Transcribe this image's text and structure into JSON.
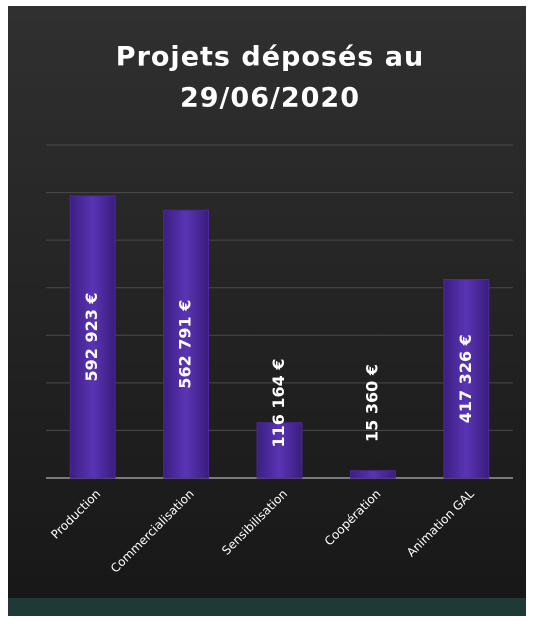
{
  "chart_data": {
    "type": "bar",
    "title": [
      "Projets déposés au",
      "29/06/2020"
    ],
    "categories": [
      "Production",
      "Commercialisation",
      "Sensibilisation",
      "Coopération",
      "Animation GAL"
    ],
    "values": [
      592923,
      562791,
      116164,
      15360,
      417326
    ],
    "value_labels": [
      "592 923 €",
      "562 791 €",
      "116 164 €",
      "15 360 €",
      "417 326 €"
    ],
    "color": "#4b2a9a",
    "ylim": [
      0,
      700000
    ],
    "yticks": [
      0,
      100000,
      200000,
      300000,
      400000,
      500000,
      600000,
      700000
    ],
    "grid": true
  }
}
